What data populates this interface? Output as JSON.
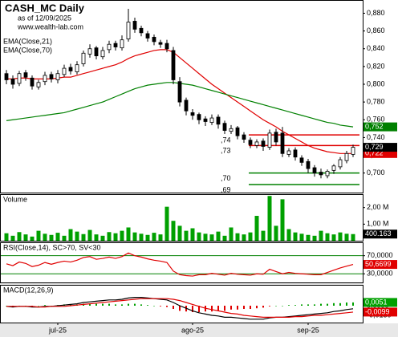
{
  "chart_data": [
    {
      "type": "candlestick",
      "title": "CASH_MC Daily",
      "subtitle": "as of 12/09/2025",
      "source": "www.wealth-lab.com",
      "categories": [
        null,
        null,
        null,
        null,
        null,
        null,
        null,
        null,
        "jul-25",
        null,
        null,
        null,
        null,
        null,
        null,
        null,
        null,
        null,
        null,
        null,
        null,
        null,
        null,
        null,
        null,
        null,
        null,
        null,
        null,
        "ago-25",
        null,
        null,
        null,
        null,
        null,
        null,
        null,
        null,
        null,
        null,
        null,
        null,
        null,
        null,
        null,
        null,
        null,
        "sep-25",
        null,
        null,
        null,
        null,
        null,
        null,
        null
      ],
      "opens": [
        0.812,
        0.806,
        0.801,
        0.813,
        0.807,
        0.797,
        0.803,
        0.811,
        0.805,
        0.811,
        0.819,
        0.814,
        0.823,
        0.834,
        0.841,
        0.831,
        0.839,
        0.846,
        0.841,
        0.851,
        0.871,
        0.863,
        0.857,
        0.853,
        0.847,
        0.846,
        0.838,
        0.803,
        0.782,
        0.768,
        0.766,
        0.761,
        0.757,
        0.763,
        0.756,
        0.747,
        0.751,
        0.743,
        0.737,
        0.731,
        0.736,
        0.729,
        0.746,
        0.745,
        0.721,
        0.726,
        0.717,
        0.713,
        0.706,
        0.701,
        0.697,
        0.703,
        0.707,
        0.714,
        0.721
      ],
      "highs": [
        0.816,
        0.81,
        0.815,
        0.816,
        0.81,
        0.805,
        0.814,
        0.814,
        0.816,
        0.822,
        0.823,
        0.826,
        0.838,
        0.845,
        0.843,
        0.842,
        0.849,
        0.849,
        0.855,
        0.885,
        0.875,
        0.866,
        0.86,
        0.856,
        0.85,
        0.85,
        0.842,
        0.808,
        0.785,
        0.772,
        0.768,
        0.764,
        0.766,
        0.766,
        0.759,
        0.754,
        0.753,
        0.746,
        0.74,
        0.738,
        0.739,
        0.749,
        0.75,
        0.752,
        0.728,
        0.729,
        0.72,
        0.716,
        0.709,
        0.705,
        0.704,
        0.71,
        0.718,
        0.725,
        0.732
      ],
      "lows": [
        0.8,
        0.795,
        0.798,
        0.804,
        0.794,
        0.794,
        0.799,
        0.802,
        0.801,
        0.808,
        0.811,
        0.811,
        0.82,
        0.83,
        0.828,
        0.828,
        0.835,
        0.838,
        0.838,
        0.848,
        0.858,
        0.854,
        0.848,
        0.844,
        0.841,
        0.836,
        0.8,
        0.775,
        0.765,
        0.76,
        0.755,
        0.753,
        0.754,
        0.75,
        0.744,
        0.744,
        0.738,
        0.734,
        0.728,
        0.728,
        0.725,
        0.726,
        0.731,
        0.718,
        0.718,
        0.714,
        0.708,
        0.7,
        0.696,
        0.694,
        0.694,
        0.699,
        0.704,
        0.711,
        0.718
      ],
      "closes": [
        0.805,
        0.8,
        0.812,
        0.808,
        0.798,
        0.802,
        0.81,
        0.806,
        0.812,
        0.818,
        0.815,
        0.822,
        0.835,
        0.84,
        0.832,
        0.838,
        0.845,
        0.842,
        0.85,
        0.87,
        0.862,
        0.858,
        0.852,
        0.848,
        0.845,
        0.84,
        0.805,
        0.78,
        0.77,
        0.765,
        0.76,
        0.758,
        0.762,
        0.755,
        0.748,
        0.75,
        0.742,
        0.738,
        0.732,
        0.735,
        0.73,
        0.745,
        0.735,
        0.722,
        0.725,
        0.718,
        0.712,
        0.705,
        0.7,
        0.698,
        0.702,
        0.708,
        0.715,
        0.722,
        0.729
      ],
      "close_tag": {
        "value": 0.729,
        "label": "0,729",
        "color": "#000000"
      },
      "series": [
        {
          "name": "EMA(Close,21)",
          "color": "#e00000",
          "tag": {
            "value": 0.722,
            "label": "0,722"
          },
          "values": [
            0.806,
            0.806,
            0.807,
            0.807,
            0.806,
            0.806,
            0.806,
            0.806,
            0.807,
            0.808,
            0.808,
            0.81,
            0.812,
            0.814,
            0.816,
            0.818,
            0.82,
            0.822,
            0.825,
            0.829,
            0.832,
            0.834,
            0.836,
            0.838,
            0.839,
            0.839,
            0.836,
            0.83,
            0.824,
            0.818,
            0.812,
            0.806,
            0.8,
            0.795,
            0.79,
            0.785,
            0.78,
            0.775,
            0.77,
            0.765,
            0.76,
            0.756,
            0.752,
            0.747,
            0.743,
            0.739,
            0.735,
            0.731,
            0.728,
            0.726,
            0.724,
            0.723,
            0.722,
            0.722,
            0.722
          ]
        },
        {
          "name": "EMA(Close,70)",
          "color": "#008000",
          "tag": {
            "value": 0.752,
            "label": "0,752"
          },
          "values": [
            0.759,
            0.76,
            0.761,
            0.762,
            0.763,
            0.764,
            0.765,
            0.766,
            0.767,
            0.768,
            0.77,
            0.772,
            0.774,
            0.776,
            0.778,
            0.78,
            0.783,
            0.786,
            0.789,
            0.792,
            0.795,
            0.797,
            0.799,
            0.8,
            0.801,
            0.802,
            0.802,
            0.801,
            0.8,
            0.799,
            0.797,
            0.795,
            0.793,
            0.791,
            0.789,
            0.787,
            0.785,
            0.783,
            0.781,
            0.779,
            0.777,
            0.775,
            0.773,
            0.771,
            0.769,
            0.767,
            0.765,
            0.763,
            0.761,
            0.759,
            0.757,
            0.756,
            0.754,
            0.753,
            0.752
          ]
        }
      ],
      "levels": [
        {
          "value": 0.743,
          "label": ",74",
          "color": "#e00000"
        },
        {
          "value": 0.731,
          "label": ",73",
          "color": "#e00000"
        },
        {
          "value": 0.7,
          "label": ",70",
          "color": "#008000"
        },
        {
          "value": 0.687,
          "label": ",69",
          "color": "#008000"
        }
      ],
      "ylim": [
        0.678,
        0.894
      ],
      "yticks": [
        {
          "value": 0.7,
          "label": "0,700"
        },
        {
          "value": 0.72,
          "label": "0,720"
        },
        {
          "value": 0.74,
          "label": "0,740"
        },
        {
          "value": 0.76,
          "label": "0,760"
        },
        {
          "value": 0.78,
          "label": "0,780"
        },
        {
          "value": 0.8,
          "label": "0,800"
        },
        {
          "value": 0.82,
          "label": "0,820"
        },
        {
          "value": 0.84,
          "label": "0,840"
        },
        {
          "value": 0.86,
          "label": "0,860"
        },
        {
          "value": 0.88,
          "label": "0,880"
        }
      ]
    },
    {
      "type": "bar",
      "title": "Volume",
      "color": "#00a000",
      "values": [
        450000,
        300000,
        520000,
        380000,
        250000,
        600000,
        420000,
        350000,
        480000,
        300000,
        700000,
        550000,
        400000,
        650000,
        380000,
        300000,
        520000,
        450000,
        600000,
        800000,
        500000,
        420000,
        350000,
        480000,
        380000,
        2050000,
        1200000,
        900000,
        600000,
        750000,
        500000,
        420000,
        380000,
        550000,
        300000,
        800000,
        450000,
        380000,
        500000,
        1500000,
        600000,
        2700000,
        900000,
        2500000,
        700000,
        500000,
        420000,
        350000,
        300000,
        600000,
        450000,
        380000,
        500000,
        420000,
        400163
      ],
      "tag": {
        "value": 400163,
        "label": "400.163",
        "color": "#000000"
      },
      "ylim": [
        0,
        2760000
      ],
      "yticks": [
        {
          "value": 1000000,
          "label": "1,00 M"
        },
        {
          "value": 2000000,
          "label": "2,00 M"
        }
      ]
    },
    {
      "type": "line",
      "title": "RSI(Close,14), SC>70, SV<30",
      "color": "#e00000",
      "level_color": "#008000",
      "values": [
        52,
        48,
        56,
        53,
        46,
        49,
        55,
        51,
        55,
        58,
        56,
        60,
        66,
        68,
        62,
        64,
        67,
        64,
        68,
        76,
        70,
        67,
        63,
        60,
        58,
        55,
        36,
        28,
        26,
        25,
        28,
        28,
        31,
        29,
        27,
        31,
        29,
        28,
        27,
        30,
        29,
        40,
        35,
        30,
        33,
        31,
        30,
        29,
        28,
        28,
        33,
        38,
        43,
        47,
        50.6699
      ],
      "tag": {
        "value": 50.6699,
        "label": "50,6699"
      },
      "ylim": [
        10.9,
        97.8
      ],
      "yticks": [
        {
          "value": 30,
          "label": "30,0000"
        },
        {
          "value": 70,
          "label": "70,0000"
        }
      ]
    },
    {
      "type": "macd",
      "title": "MACD(12,26,9)",
      "series": [
        {
          "style": "bar",
          "color": "#00a000",
          "negative_color": "#e00000",
          "tag": {
            "value": 0.0051,
            "label": "0,0051"
          },
          "values": [
            0,
            -0.001,
            0,
            0,
            -0.001,
            0,
            0.001,
            0,
            0.001,
            0.002,
            0.002,
            0.002,
            0.003,
            0.003,
            0.003,
            0.003,
            0.003,
            0.002,
            0.002,
            0.003,
            0.003,
            0.002,
            0.001,
            0,
            -0.001,
            -0.002,
            -0.005,
            -0.008,
            -0.009,
            -0.01,
            -0.01,
            -0.009,
            -0.009,
            -0.008,
            -0.008,
            -0.006,
            -0.006,
            -0.005,
            -0.005,
            -0.004,
            -0.003,
            -0.001,
            0,
            0,
            0.001,
            0.001,
            0.002,
            0.002,
            0.002,
            0.003,
            0.003,
            0.004,
            0.004,
            0.005,
            0.0051
          ]
        },
        {
          "style": "line",
          "color": "#000000",
          "values": [
            -0.001,
            -0.002,
            -0.001,
            -0.001,
            -0.002,
            -0.002,
            -0.001,
            -0.001,
            0,
            0.001,
            0.002,
            0.003,
            0.005,
            0.006,
            0.007,
            0.008,
            0.009,
            0.009,
            0.01,
            0.012,
            0.013,
            0.013,
            0.012,
            0.011,
            0.01,
            0.009,
            0.005,
            0,
            -0.004,
            -0.008,
            -0.011,
            -0.013,
            -0.015,
            -0.016,
            -0.018,
            -0.018,
            -0.019,
            -0.02,
            -0.021,
            -0.021,
            -0.021,
            -0.019,
            -0.018,
            -0.018,
            -0.017,
            -0.016,
            -0.015,
            -0.014,
            -0.013,
            -0.012,
            -0.011,
            -0.009,
            -0.008,
            -0.006,
            -0.0048
          ]
        },
        {
          "style": "line",
          "color": "#e00000",
          "tag": {
            "value": -0.0099,
            "label": "-0,0099"
          },
          "values": [
            -0.001,
            -0.001,
            -0.001,
            -0.001,
            -0.001,
            -0.002,
            -0.002,
            -0.001,
            -0.001,
            -0.001,
            0,
            0.001,
            0.002,
            0.003,
            0.004,
            0.005,
            0.006,
            0.007,
            0.008,
            0.009,
            0.01,
            0.011,
            0.011,
            0.011,
            0.011,
            0.011,
            0.01,
            0.008,
            0.005,
            0.002,
            -0.001,
            -0.004,
            -0.006,
            -0.008,
            -0.01,
            -0.012,
            -0.013,
            -0.015,
            -0.016,
            -0.017,
            -0.018,
            -0.018,
            -0.018,
            -0.018,
            -0.018,
            -0.017,
            -0.017,
            -0.016,
            -0.015,
            -0.015,
            -0.014,
            -0.013,
            -0.012,
            -0.011,
            -0.0099
          ]
        }
      ],
      "ylim": [
        -0.02625,
        0.03125
      ],
      "yticks": [
        {
          "value": -0.015,
          "label": "-0,0150"
        },
        {
          "value": 0,
          "label": "0,0000"
        }
      ]
    }
  ]
}
